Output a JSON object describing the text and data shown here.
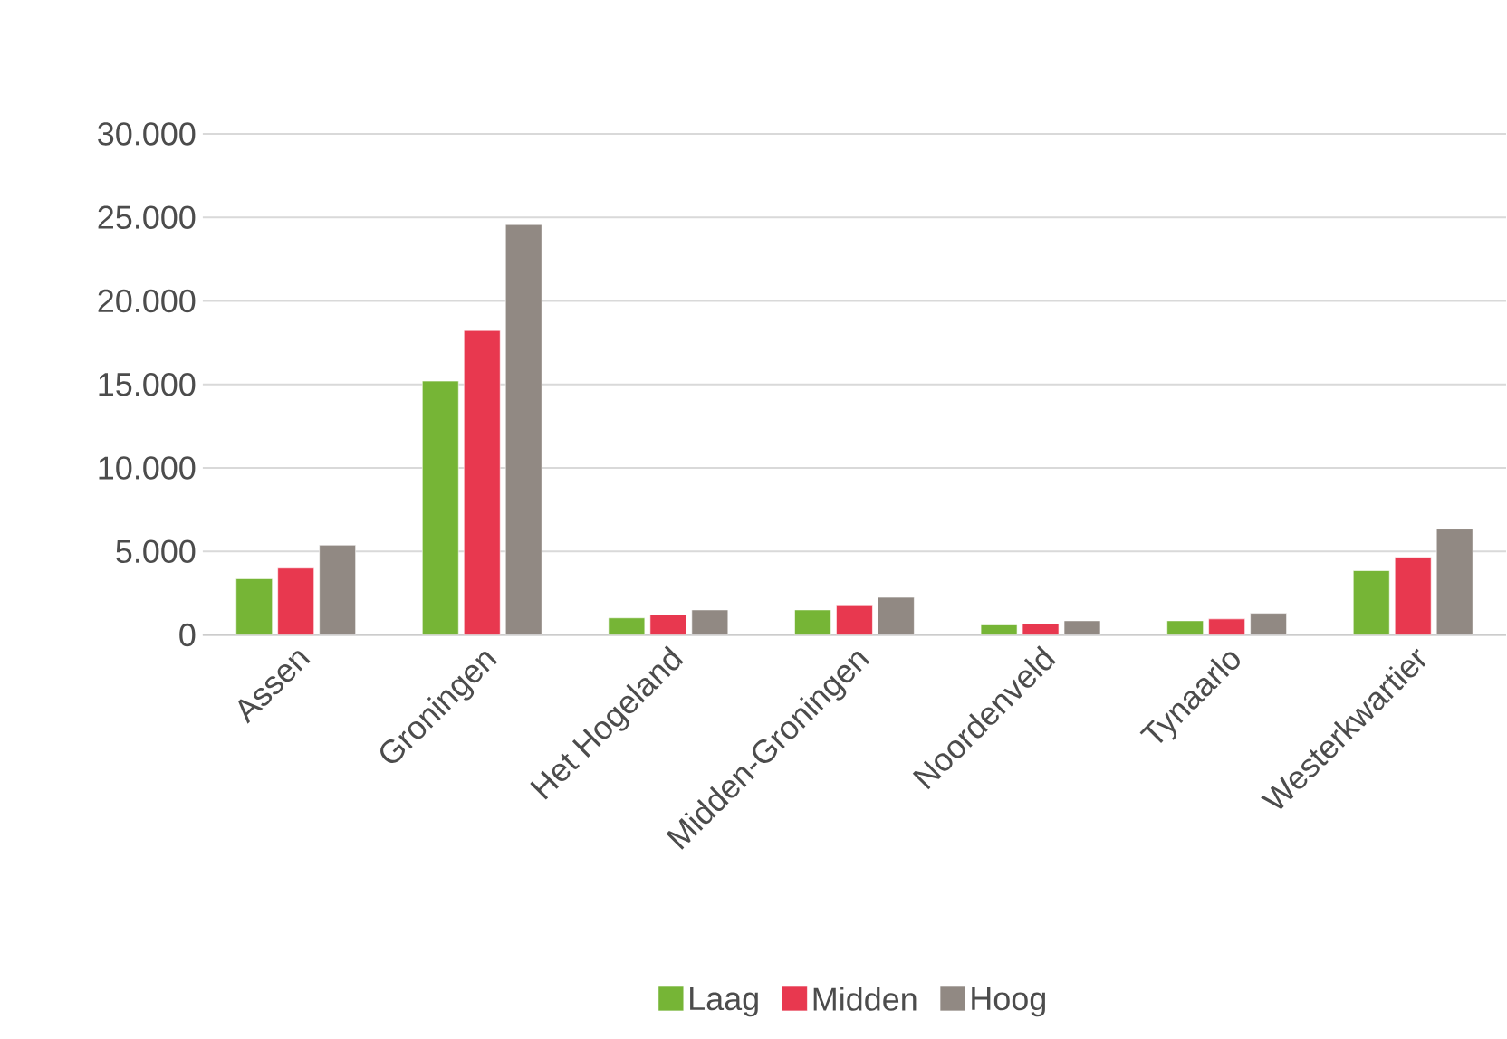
{
  "chart_data": {
    "type": "bar",
    "categories": [
      "Assen",
      "Groningen",
      "Het Hogeland",
      "Midden-Groningen",
      "Noordenveld",
      "Tynaarlo",
      "Westerkwartier"
    ],
    "series": [
      {
        "name": "Laag",
        "color": "#76b536",
        "values": [
          3370,
          15200,
          1020,
          1500,
          600,
          850,
          3850
        ]
      },
      {
        "name": "Midden",
        "color": "#e8384f",
        "values": [
          4000,
          18230,
          1200,
          1750,
          660,
          960,
          4650
        ]
      },
      {
        "name": "Hoog",
        "color": "#918983",
        "values": [
          5380,
          24570,
          1500,
          2250,
          850,
          1300,
          6340
        ]
      }
    ],
    "ylim": [
      0,
      30000
    ],
    "yticks": [
      {
        "value": 0,
        "label": "0"
      },
      {
        "value": 5000,
        "label": "5.000"
      },
      {
        "value": 10000,
        "label": "10.000"
      },
      {
        "value": 15000,
        "label": "15.000"
      },
      {
        "value": 20000,
        "label": "20.000"
      },
      {
        "value": 25000,
        "label": "25.000"
      },
      {
        "value": 30000,
        "label": "30.000"
      }
    ],
    "grid": "y",
    "legend": "bottom"
  }
}
